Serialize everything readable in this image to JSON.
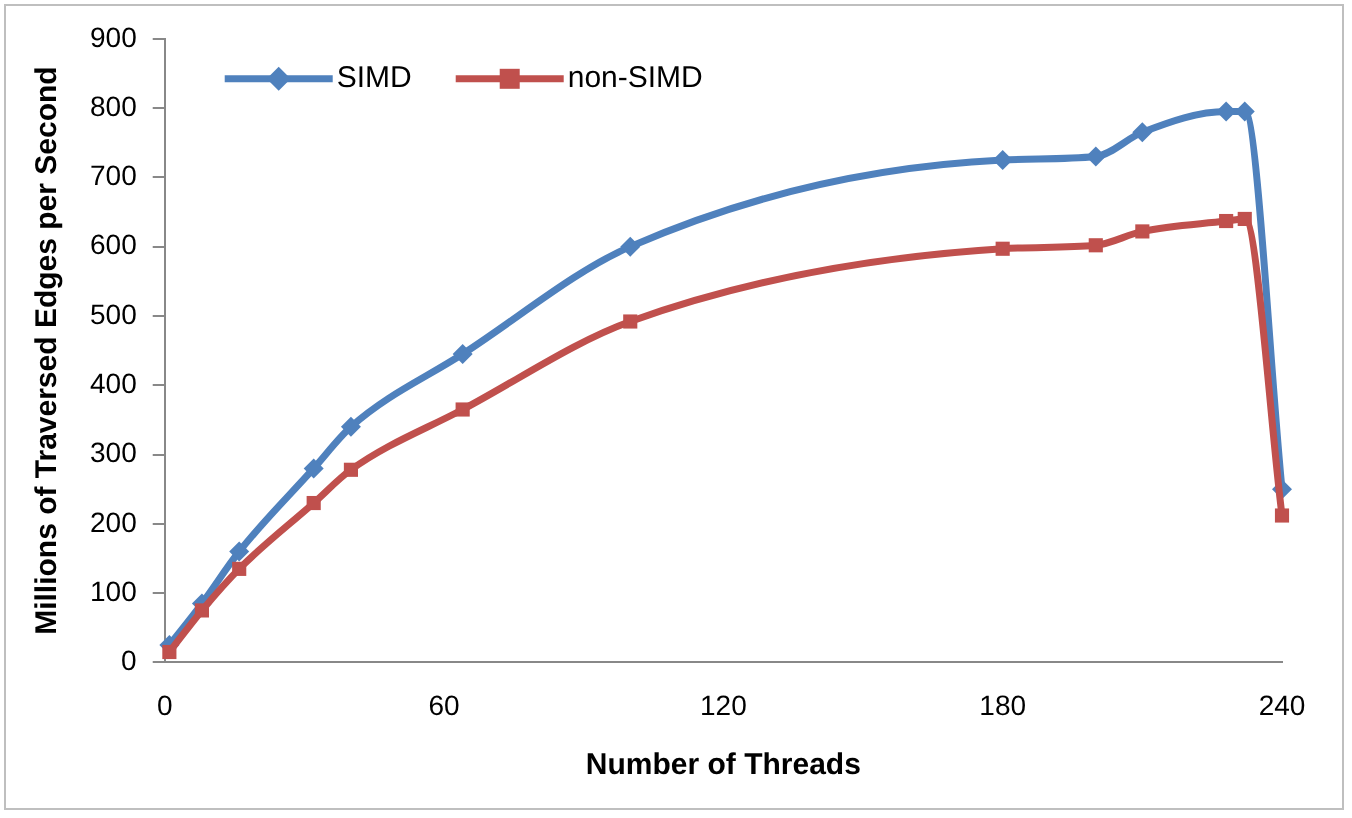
{
  "chart_data": {
    "type": "line",
    "xlabel": "Number of Threads",
    "ylabel": "Millions of Traversed Edges per Second",
    "x": [
      1,
      8,
      16,
      32,
      40,
      64,
      100,
      180,
      200,
      210,
      228,
      232,
      240
    ],
    "series": [
      {
        "name": "SIMD",
        "color": "#4f81bd",
        "marker": "diamond",
        "values": [
          25,
          85,
          160,
          280,
          340,
          445,
          600,
          725,
          730,
          765,
          795,
          795,
          250
        ]
      },
      {
        "name": "non-SIMD",
        "color": "#c0504d",
        "marker": "square",
        "values": [
          15,
          75,
          135,
          230,
          278,
          365,
          492,
          597,
          602,
          622,
          637,
          640,
          212
        ]
      }
    ],
    "xlim": [
      0,
      240
    ],
    "xticks": [
      0,
      60,
      120,
      180,
      240
    ],
    "ylim": [
      0,
      900
    ],
    "yticks": [
      0,
      100,
      200,
      300,
      400,
      500,
      600,
      700,
      800,
      900
    ],
    "grid": false,
    "legend": "top left"
  }
}
